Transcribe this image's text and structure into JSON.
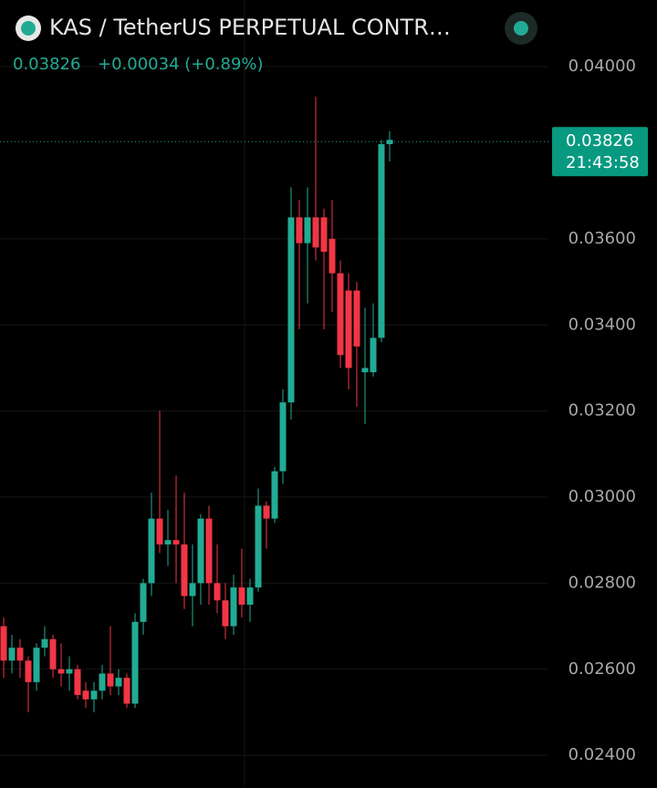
{
  "header": {
    "title": "KAS / TetherUS PERPETUAL CONTR…",
    "price": "0.03826",
    "change": "+0.00034 (+0.89%)"
  },
  "chart_data": {
    "type": "candlestick",
    "up_color": "#22ab94",
    "down_color": "#f23645",
    "grid": true,
    "ylim": [
      0.02324,
      0.04155
    ],
    "yticks": [
      {
        "value": 0.024,
        "label": "0.02400"
      },
      {
        "value": 0.026,
        "label": "0.02600"
      },
      {
        "value": 0.028,
        "label": "0.02800"
      },
      {
        "value": 0.03,
        "label": "0.03000"
      },
      {
        "value": 0.032,
        "label": "0.03200"
      },
      {
        "value": 0.034,
        "label": "0.03400"
      },
      {
        "value": 0.036,
        "label": "0.03600"
      },
      {
        "value": 0.04,
        "label": "0.04000"
      }
    ],
    "last_price": 0.03826,
    "last_time": "21:43:58",
    "open": [
      0.027,
      0.0262,
      0.0265,
      0.0262,
      0.0257,
      0.0265,
      0.0267,
      0.026,
      0.0259,
      0.026,
      0.0255,
      0.0253,
      0.0255,
      0.0259,
      0.0256,
      0.0258,
      0.0252,
      0.0271,
      0.028,
      0.0295,
      0.0289,
      0.029,
      0.0289,
      0.0277,
      0.028,
      0.0295,
      0.028,
      0.0276,
      0.027,
      0.0279,
      0.0275,
      0.0279,
      0.0298,
      0.0295,
      0.0306,
      0.0322,
      0.0365,
      0.0359,
      0.0365,
      0.0365,
      0.036,
      0.0352,
      0.0348,
      0.0348,
      0.0329,
      0.0329,
      0.0337,
      0.0382
    ],
    "high": [
      0.0272,
      0.0268,
      0.0267,
      0.0263,
      0.0266,
      0.027,
      0.0268,
      0.0266,
      0.0263,
      0.0261,
      0.0257,
      0.0257,
      0.0261,
      0.027,
      0.026,
      0.0259,
      0.0273,
      0.0281,
      0.0301,
      0.032,
      0.0297,
      0.0305,
      0.0301,
      0.0289,
      0.0296,
      0.0298,
      0.0289,
      0.028,
      0.0282,
      0.0288,
      0.0281,
      0.0302,
      0.0299,
      0.0307,
      0.0325,
      0.0372,
      0.0369,
      0.0372,
      0.0393,
      0.0367,
      0.0369,
      0.0355,
      0.0352,
      0.035,
      0.0344,
      0.0345,
      0.0383,
      0.0385
    ],
    "low": [
      0.0258,
      0.0259,
      0.0258,
      0.025,
      0.0255,
      0.0263,
      0.0258,
      0.0256,
      0.0255,
      0.0253,
      0.0251,
      0.025,
      0.0253,
      0.0254,
      0.0254,
      0.0251,
      0.0251,
      0.0268,
      0.0277,
      0.0287,
      0.0284,
      0.028,
      0.0274,
      0.027,
      0.0275,
      0.0275,
      0.0273,
      0.0267,
      0.0268,
      0.0272,
      0.0271,
      0.0278,
      0.0288,
      0.0294,
      0.0303,
      0.0318,
      0.0339,
      0.0345,
      0.0355,
      0.0339,
      0.0343,
      0.033,
      0.0325,
      0.0321,
      0.0317,
      0.0328,
      0.0336,
      0.0378
    ],
    "close": [
      0.0262,
      0.0265,
      0.0262,
      0.0257,
      0.0265,
      0.0267,
      0.026,
      0.0259,
      0.026,
      0.0254,
      0.0253,
      0.0255,
      0.0259,
      0.0256,
      0.0258,
      0.0252,
      0.0271,
      0.028,
      0.0295,
      0.0289,
      0.029,
      0.0289,
      0.0277,
      0.028,
      0.0295,
      0.028,
      0.0276,
      0.027,
      0.0279,
      0.0275,
      0.0279,
      0.0298,
      0.0295,
      0.0306,
      0.0322,
      0.0365,
      0.0359,
      0.0365,
      0.0358,
      0.0357,
      0.0352,
      0.0333,
      0.033,
      0.0335,
      0.033,
      0.0337,
      0.0382,
      0.0383
    ]
  }
}
